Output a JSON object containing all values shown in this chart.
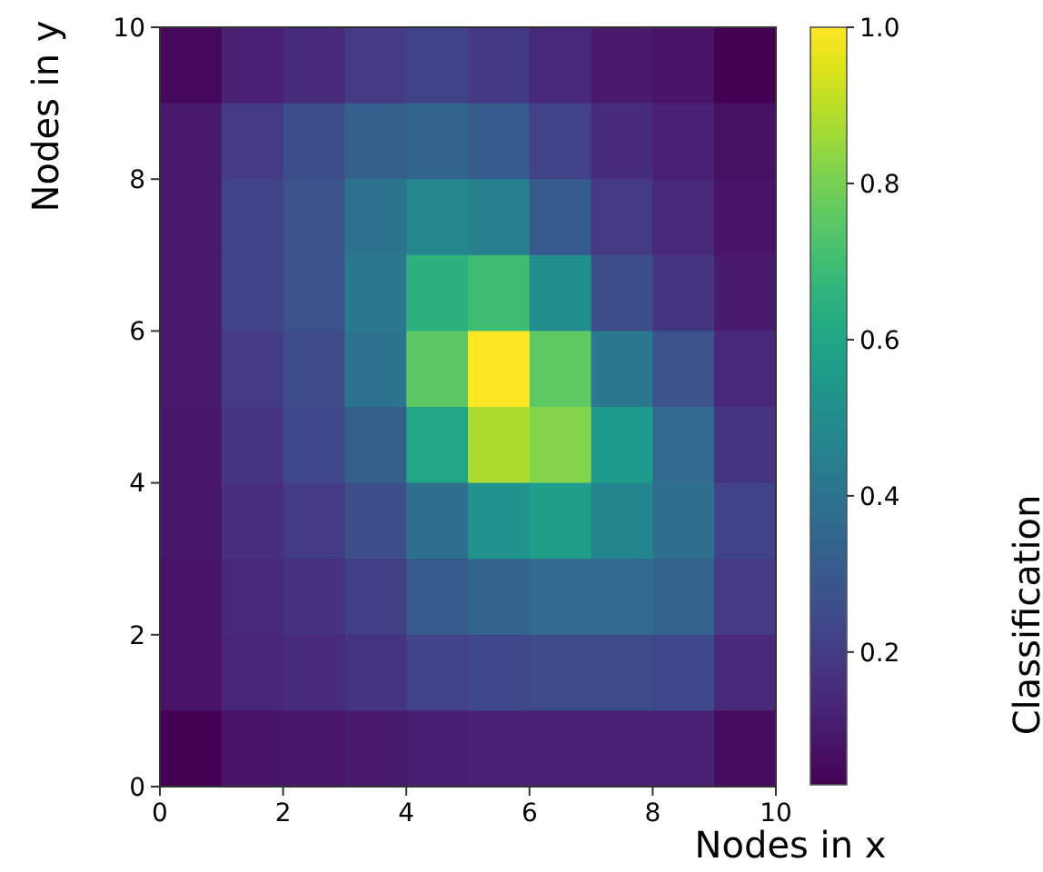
{
  "chart_data": {
    "type": "heatmap",
    "xlabel": "Nodes in x",
    "ylabel": "Nodes in y",
    "clabel": "Classification",
    "xlim": [
      0,
      10
    ],
    "xticks": [
      0,
      2,
      4,
      6,
      8,
      10
    ],
    "ylim": [
      0,
      10
    ],
    "yticks": [
      0,
      2,
      4,
      6,
      8,
      10
    ],
    "clim": [
      0.03,
      1.0
    ],
    "cticks": [
      {
        "value": 0.2,
        "label": "0.2"
      },
      {
        "value": 0.4,
        "label": "0.4"
      },
      {
        "value": 0.6,
        "label": "0.6"
      },
      {
        "value": 0.8,
        "label": "0.8"
      },
      {
        "value": 1.0,
        "label": "1.0"
      }
    ],
    "cells": [
      [
        0.05,
        0.12,
        0.15,
        0.2,
        0.22,
        0.19,
        0.14,
        0.1,
        0.08,
        0.03
      ],
      [
        0.1,
        0.2,
        0.26,
        0.32,
        0.34,
        0.31,
        0.22,
        0.15,
        0.12,
        0.07
      ],
      [
        0.1,
        0.22,
        0.28,
        0.4,
        0.48,
        0.45,
        0.3,
        0.2,
        0.14,
        0.08
      ],
      [
        0.1,
        0.22,
        0.28,
        0.42,
        0.65,
        0.7,
        0.5,
        0.26,
        0.18,
        0.1
      ],
      [
        0.1,
        0.2,
        0.25,
        0.4,
        0.75,
        1.0,
        0.76,
        0.42,
        0.28,
        0.14
      ],
      [
        0.09,
        0.18,
        0.24,
        0.32,
        0.6,
        0.88,
        0.82,
        0.56,
        0.36,
        0.18
      ],
      [
        0.09,
        0.16,
        0.2,
        0.26,
        0.38,
        0.53,
        0.57,
        0.47,
        0.38,
        0.22
      ],
      [
        0.08,
        0.14,
        0.17,
        0.21,
        0.3,
        0.34,
        0.36,
        0.36,
        0.33,
        0.2
      ],
      [
        0.08,
        0.13,
        0.15,
        0.18,
        0.22,
        0.24,
        0.25,
        0.25,
        0.24,
        0.14
      ],
      [
        0.03,
        0.08,
        0.09,
        0.1,
        0.11,
        0.12,
        0.12,
        0.12,
        0.12,
        0.06
      ]
    ]
  }
}
